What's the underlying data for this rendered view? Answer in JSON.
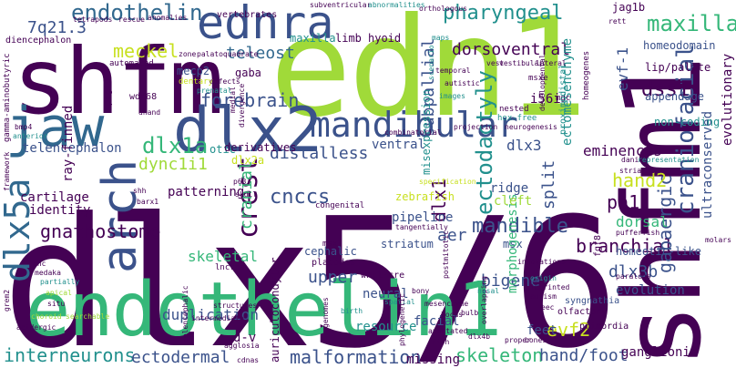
{
  "palette": {
    "dark_purple": "#440154",
    "indigo": "#3b528b",
    "teal": "#21908d",
    "green": "#5dc963",
    "lime": "#a0da39",
    "yellow_green": "#c8e020",
    "deep_blue": "#31688e",
    "sea_green": "#35b779"
  },
  "words": {
    "dlx56": "dlx5/6",
    "edn1": "edn1",
    "shfm": "shfm",
    "shfm1_vertical": "shfm1",
    "endothelin1": "endothelin1",
    "jaw": "jaw",
    "ednra": "ednra",
    "dlx2": "dlx2",
    "mandibular": "mandibular",
    "arch": "arch",
    "dlx5a": "dlx5a",
    "endothelin": "endothelin",
    "forebrain": "forebrain",
    "pharyngeal": "pharyngeal",
    "maxillary": "maxillary",
    "craniofacial": "craniofacial",
    "ectodactyly": "ectodactyly",
    "crest": "crest",
    "distalless": "distalless",
    "cnccs": "cnccs",
    "dlx1a": "dlx1a",
    "dync1i1": "dync1i1",
    "gnathostome": "gnathostome",
    "mandible": "mandible",
    "branchial": "branchial",
    "gabaergic": "gabaergic",
    "interneurons": "interneurons",
    "ectodermal": "ectodermal",
    "malformation": "malformation",
    "skeleton": "skeleton",
    "hand_foot": "hand/foot",
    "teleost": "teleost",
    "meckel": "meckel",
    "dss1": "dss1",
    "hand2": "hand2",
    "pa1": "pa1",
    "split": "split",
    "dlx3b": "dlx3b",
    "evf2": "evf2",
    "upper": "upper",
    "bigene": "bigene",
    "duplication": "duplication",
    "dlx3": "dlx3",
    "subpallial": "subpallial",
    "dorsoventral": "dorsoventral",
    "q7213": "7q21.3",
    "cranial": "cranial",
    "skeletal": "skeletal",
    "aer": "aer",
    "ventral": "ventral",
    "eminences": "eminences",
    "dlx1": "dlx1",
    "evf1": "evf-1",
    "i56i": "i56i",
    "ultraconserved": "ultraconserved",
    "evolutionary": "evolutionary",
    "homeodomain": "homeodomain",
    "lip_palate": "lip/palate",
    "dorsal": "dorsal",
    "evolution": "evolution",
    "cartilage": "cartilage",
    "identity": "identity",
    "telencephalon": "telencephalon",
    "rayfinned": "ray-finned",
    "mecp2": "mecp2",
    "gaba": "gaba",
    "peg10": "peg10",
    "wdr68": "wdr68",
    "patterning": "patterning",
    "otic": "otic",
    "dlx2a": "dlx2a",
    "derivatives": "derivatives",
    "neural": "neural",
    "facial": "facial",
    "resource": "resource",
    "feet": "feet",
    "ganglionic": "ganglionic",
    "missing": "missing",
    "dv": "d-v",
    "pipeline": "pipeline",
    "zebrafish": "zebrafish",
    "striatum": "striatum",
    "msx": "msx",
    "morphogenesis": "morphogenesis",
    "cleft": "cleft",
    "ridge": "ridge",
    "cephalic": "cephalic",
    "homeoticlike": "homeotic-like",
    "noncoding": "non-coding",
    "appendage": "appendage",
    "misexpression": "misexpression",
    "ectomesenchyme": "ectomesenchyme",
    "vertebrates": "vertebrates",
    "maxilla": "maxilla",
    "limb": "limb",
    "hyoid": "hyoid",
    "jag1b": "jag1b",
    "auriculocondylar": "auriculocondylar",
    "syngnathia": "syngnathia",
    "olfactory": "olfactory",
    "primordia": "primordia",
    "fgf8": "fgf8",
    "rett": "rett",
    "mgc": "mgc",
    "msxe": "msxe",
    "proximodistal": "proximodistal",
    "homeogenes": "homeogenes",
    "hoxfree": "hox-free",
    "nested": "nested",
    "wntlcre": "wntl-cre",
    "placodes": "placodes",
    "lncrna": "lncrna",
    "msxl": "msxl",
    "congenital": "congenital",
    "diencephalon": "diencephalon",
    "automated": "automated",
    "gammaaminobutyric": "gamma-aminobutyric",
    "bmp4": "bmp4",
    "anterior": "anterior",
    "dentary": "dentary",
    "prenatal": "prenatal",
    "defects": "defects",
    "medial": "medial",
    "divergence": "divergence",
    "scenario": "scenario",
    "temporal": "temporal",
    "images": "images",
    "autistic": "autistic",
    "combinatorial": "combinatorial",
    "projection": "projection",
    "neurogenesis": "neurogenesis",
    "developmental": "developmental",
    "skull": "skull",
    "shh": "shh",
    "barx1": "barx1",
    "p63": "p63",
    "dhand": "dhand",
    "framework": "framework",
    "cnc": "cnc",
    "medaka": "medaka",
    "partially": "partially",
    "apical": "apical",
    "situ": "situ",
    "grem2": "grem2",
    "acidergic": "acidergic",
    "choroid": "choroid",
    "searchable": "searchable",
    "agglosia": "agglosia",
    "cdnas": "cdnas",
    "telencephalic": "telencephalic",
    "intermediate": "intermediate",
    "structures": "structures",
    "genomes": "genomes",
    "birth": "birth",
    "mesenchyme": "mesenchyme",
    "spatial": "spatial",
    "bulb": "bulb",
    "locus": "locus",
    "annotated": "annotated",
    "fish": "fish",
    "phylogenetic": "phylogenetic",
    "dlx4b": "dlx4b",
    "proper": "proper",
    "bones": "bones",
    "autism": "autism",
    "imprinted": "imprinted",
    "origin": "origin",
    "innovations": "innovations",
    "overlapping": "overlapping",
    "postmitotic": "postmitotic",
    "tangentially": "tangentially",
    "specification": "specification",
    "pufferfish": "pufferfish",
    "paralogs": "paralogs",
    "molars": "molars",
    "striatal": "striatal",
    "danio": "danio",
    "representation": "representation",
    "tetrapods": "tetrapods",
    "rescue": "rescue",
    "anomalies": "anomalies",
    "subventricular": "subventricular",
    "abnormalities": "abnormalities",
    "orthologous": "orthologous",
    "vest": "vest",
    "vestibular": "vestibular",
    "lateral": "lateral",
    "maps": "maps",
    "palatoquadrate": "palatoquadrate",
    "zone": "zone",
    "nasal": "nasal",
    "ec": "eec",
    "bony": "bony"
  }
}
